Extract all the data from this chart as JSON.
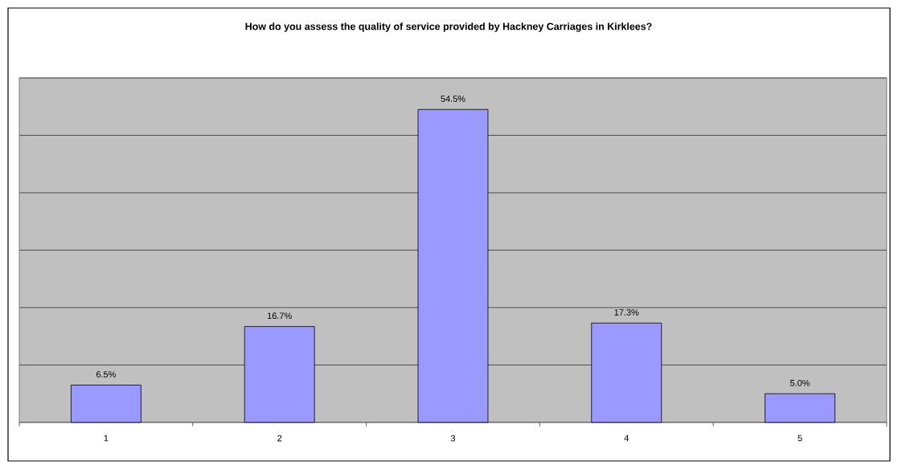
{
  "chart_data": {
    "type": "bar",
    "title": "How do you assess the quality of service provided by Hackney Carriages in Kirklees?",
    "categories": [
      "1",
      "2",
      "3",
      "4",
      "5"
    ],
    "values": [
      6.5,
      16.7,
      54.5,
      17.3,
      5.0
    ],
    "value_labels": [
      "6.5%",
      "16.7%",
      "54.5%",
      "17.3%",
      "5.0%"
    ],
    "color": "#9999ff",
    "ylim": [
      0,
      60
    ],
    "yticks": [
      {
        "value": 0,
        "label": null
      },
      {
        "value": 10,
        "label": null
      },
      {
        "value": 20,
        "label": null
      },
      {
        "value": 30,
        "label": null
      },
      {
        "value": 40,
        "label": null
      },
      {
        "value": 50,
        "label": null
      },
      {
        "value": 60,
        "label": null
      }
    ],
    "grid": "y",
    "tick_labels": "x"
  }
}
